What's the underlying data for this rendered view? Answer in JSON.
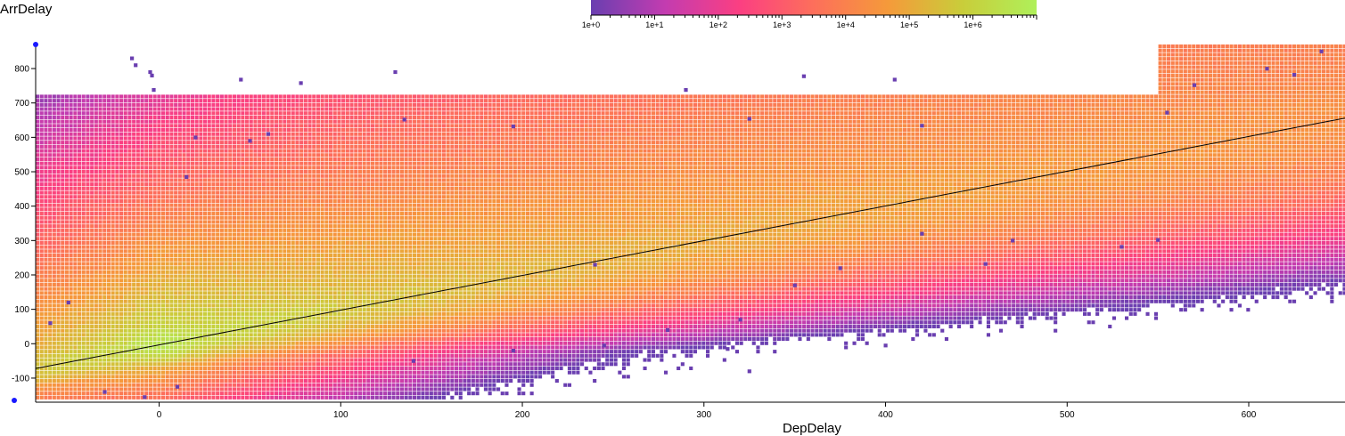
{
  "chart_data": {
    "type": "heatmap",
    "ylabel": "ArrDelay",
    "xlabel": "DepDelay",
    "xlim": [
      -68,
      653
    ],
    "ylim": [
      -170,
      870
    ],
    "x_ticks": [
      0,
      100,
      200,
      300,
      400,
      500,
      600
    ],
    "y_ticks": [
      -100,
      0,
      100,
      200,
      300,
      400,
      500,
      600,
      700,
      800
    ],
    "color_scale": {
      "type": "log",
      "domain": [
        1,
        10000000
      ],
      "tick_labels": [
        "1e+0",
        "1e+1",
        "1e+2",
        "1e+3",
        "1e+4",
        "1e+5",
        "1e+6"
      ],
      "colors": [
        "#6a3fb0",
        "#c33cb0",
        "#fb3f82",
        "#fd6f5b",
        "#f59a3a",
        "#c9cd3a",
        "#aff05a"
      ]
    },
    "regression_line": {
      "x": [
        -68,
        653
      ],
      "y": [
        -72,
        656
      ]
    },
    "density_band": {
      "center_points": [
        [
          -68,
          -60
        ],
        [
          -20,
          -10
        ],
        [
          0,
          0
        ],
        [
          100,
          100
        ],
        [
          200,
          200
        ],
        [
          300,
          300
        ],
        [
          400,
          400
        ],
        [
          500,
          500
        ],
        [
          653,
          656
        ]
      ],
      "peak_count": 2000000
    },
    "outliers": [
      [
        -15,
        830
      ],
      [
        -13,
        810
      ],
      [
        -5,
        790
      ],
      [
        -4,
        780
      ],
      [
        -3,
        738
      ],
      [
        45,
        768
      ],
      [
        78,
        758
      ],
      [
        130,
        790
      ],
      [
        135,
        652
      ],
      [
        290,
        738
      ],
      [
        355,
        778
      ],
      [
        405,
        768
      ],
      [
        325,
        654
      ],
      [
        420,
        634
      ],
      [
        60,
        610
      ],
      [
        20,
        600
      ],
      [
        195,
        632
      ],
      [
        550,
        302
      ],
      [
        530,
        282
      ],
      [
        455,
        232
      ],
      [
        325,
        -80
      ],
      [
        400,
        -5
      ],
      [
        313,
        -15
      ],
      [
        15,
        485
      ],
      [
        50,
        590
      ],
      [
        555,
        672
      ],
      [
        570,
        752
      ],
      [
        640,
        850
      ],
      [
        610,
        800
      ],
      [
        625,
        782
      ],
      [
        -50,
        120
      ],
      [
        -60,
        60
      ],
      [
        -8,
        -155
      ],
      [
        -30,
        -140
      ],
      [
        10,
        -125
      ],
      [
        140,
        -50
      ],
      [
        195,
        -20
      ],
      [
        245,
        -5
      ],
      [
        280,
        40
      ],
      [
        320,
        70
      ],
      [
        420,
        320
      ],
      [
        470,
        300
      ],
      [
        375,
        220
      ],
      [
        350,
        170
      ],
      [
        240,
        230
      ]
    ]
  }
}
